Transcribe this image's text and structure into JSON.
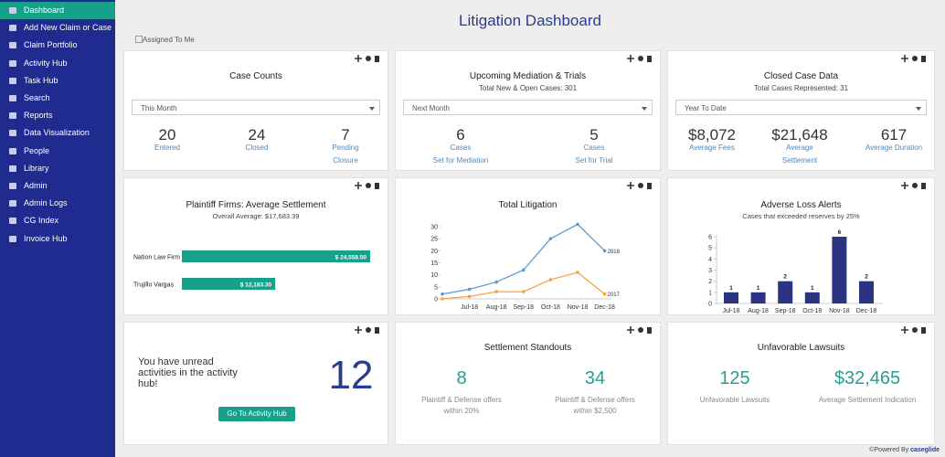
{
  "sidebar": {
    "active": 0,
    "items": [
      "Dashboard",
      "Add New Claim or Case",
      "Claim Portfolio",
      "Activity Hub",
      "Task Hub",
      "Search",
      "Reports",
      "Data Visualization",
      "People",
      "Library",
      "Admin",
      "Admin Logs",
      "CG Index",
      "Invoice Hub"
    ]
  },
  "header": {
    "title": "Litigation Dashboard",
    "checkbox": "Assigned To Me"
  },
  "widgets": {
    "case_counts": {
      "title": "Case Counts",
      "select": "This Month",
      "stats": [
        {
          "value": 20,
          "label": [
            "Entered"
          ]
        },
        {
          "value": 24,
          "label": [
            "Closed"
          ]
        },
        {
          "value": 7,
          "label": [
            "Pending",
            "Closure"
          ]
        }
      ]
    },
    "mediation": {
      "title": "Upcoming Mediation & Trials",
      "subtitle": "Total New & Open Cases: 301",
      "select": "Next Month",
      "stats": [
        {
          "value": 6,
          "label": [
            "Cases",
            "Set for Mediation"
          ]
        },
        {
          "value": 5,
          "label": [
            "Cases",
            "Set for Trial"
          ]
        }
      ]
    },
    "closed": {
      "title": "Closed Case Data",
      "subtitle": "Total Cases Represented: 31",
      "select": "Year To Date",
      "stats": [
        {
          "value": "$8,072",
          "label": [
            "Average Fees"
          ]
        },
        {
          "value": "$21,648",
          "label": [
            "Average",
            "Settlement"
          ]
        },
        {
          "value": 617,
          "label": [
            "Average Duration"
          ]
        }
      ]
    },
    "activity": {
      "text": "You have unread activities in the activity hub!",
      "count": 12,
      "button": "Go To Activity Hub"
    },
    "settlement": {
      "title": "Settlement Standouts",
      "stats": [
        {
          "value": 8,
          "label": [
            "Plaintiff & Defense offers",
            "within 20%"
          ]
        },
        {
          "value": 34,
          "label": [
            "Plaintiff & Defense offers",
            "within $2,500"
          ]
        }
      ]
    },
    "unfavorable": {
      "title": "Unfavorable Lawsuits",
      "stats": [
        {
          "value": 125,
          "label": [
            "Unfavorable Lawsuits"
          ]
        },
        {
          "value": "$32,465",
          "label": [
            "Average Settlement Indication"
          ]
        }
      ]
    }
  },
  "chart_data": [
    {
      "type": "barh",
      "title": "Plaintiff Firms: Average Settlement",
      "subtitle": "Overall Average: $17,683.39",
      "categories": [
        "Nation Law Firm",
        "Trujillo Vargas"
      ],
      "values": [
        24558.5,
        12183.3
      ],
      "value_labels": [
        "$ 24,558.50",
        "$ 12,183.30"
      ],
      "color": "#17a08a"
    },
    {
      "type": "line",
      "title": "Total Litigation",
      "categories": [
        null,
        "Jul-18",
        "Aug-18",
        "Sep-18",
        "Oct-18",
        "Nov-18",
        "Dec-18"
      ],
      "series": [
        {
          "name": "2018",
          "color": "#5b9bd5",
          "values": [
            2,
            4,
            7,
            12,
            25,
            31,
            20
          ]
        },
        {
          "name": "2017",
          "color": "#f5a142",
          "values": [
            0,
            1,
            3,
            3,
            8,
            11,
            2
          ]
        }
      ],
      "ylim": [
        0,
        30
      ],
      "yticks": [
        0,
        5,
        10,
        15,
        20,
        25,
        30
      ]
    },
    {
      "type": "bar",
      "title": "Adverse Loss Alerts",
      "subtitle": "Cases that exceeded reserves by 25%",
      "categories": [
        "Jul-18",
        "Aug-18",
        "Sep-18",
        "Oct-18",
        "Nov-18",
        "Dec-18"
      ],
      "values": [
        1,
        1,
        2,
        1,
        6,
        2
      ],
      "color": "#2b3480",
      "ylim": [
        0,
        6
      ],
      "yticks": [
        0,
        1,
        2,
        3,
        4,
        5,
        6
      ]
    }
  ],
  "footer": {
    "powered": "©Powered By",
    "brand": "caseglide"
  }
}
